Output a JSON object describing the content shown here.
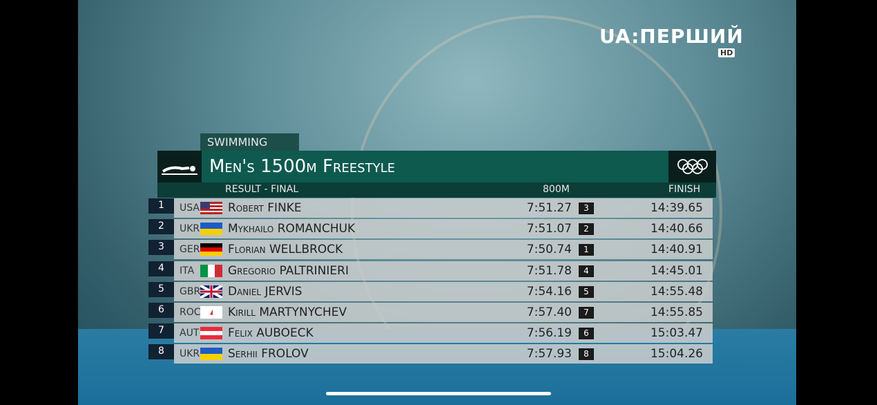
{
  "logo": {
    "text": "UA:ПЕРШИЙ",
    "badge": "HD"
  },
  "board": {
    "sport": "SWIMMING",
    "title": "Men's 1500m Freestyle",
    "subtitle": "RESULT - FINAL",
    "split_header": "800M",
    "finish_header": "FINISH",
    "rows": [
      {
        "rank": "1",
        "noc": "USA",
        "name": "Robert FINKE",
        "split": "7:51.27",
        "split_rank": "3",
        "finish": "14:39.65"
      },
      {
        "rank": "2",
        "noc": "UKR",
        "name": "Mykhailo ROMANCHUK",
        "split": "7:51.07",
        "split_rank": "2",
        "finish": "14:40.66"
      },
      {
        "rank": "3",
        "noc": "GER",
        "name": "Florian WELLBROCK",
        "split": "7:50.74",
        "split_rank": "1",
        "finish": "14:40.91"
      },
      {
        "rank": "4",
        "noc": "ITA",
        "name": "Gregorio PALTRINIERI",
        "split": "7:51.78",
        "split_rank": "4",
        "finish": "14:45.01"
      },
      {
        "rank": "5",
        "noc": "GBR",
        "name": "Daniel JERVIS",
        "split": "7:54.16",
        "split_rank": "5",
        "finish": "14:55.48"
      },
      {
        "rank": "6",
        "noc": "ROC",
        "name": "Kirill MARTYNYCHEV",
        "split": "7:57.40",
        "split_rank": "7",
        "finish": "14:55.85"
      },
      {
        "rank": "7",
        "noc": "AUT",
        "name": "Felix AUBOECK",
        "split": "7:56.19",
        "split_rank": "6",
        "finish": "15:03.47"
      },
      {
        "rank": "8",
        "noc": "UKR",
        "name": "Serhii FROLOV",
        "split": "7:57.93",
        "split_rank": "8",
        "finish": "15:04.26"
      }
    ]
  }
}
